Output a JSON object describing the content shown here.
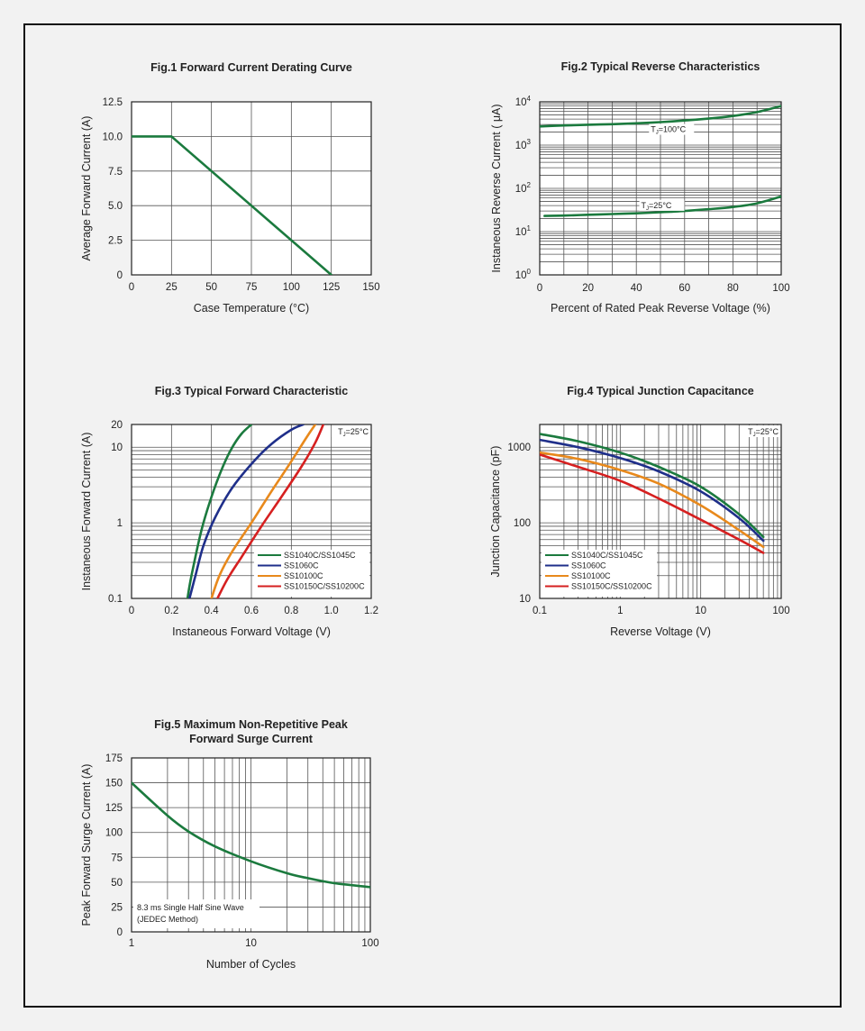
{
  "colors": {
    "background": "#f2f2f2",
    "plot_bg": "#ffffff",
    "grid": "#555555",
    "green": "#1b7a3e",
    "blue": "#1f2f8a",
    "orange": "#e8891c",
    "red": "#d62020"
  },
  "chart_data": [
    {
      "id": "fig1",
      "type": "line",
      "title": "Fig.1  Forward Current Derating Curve",
      "xlabel": "Case Temperature (°C)",
      "ylabel": "Average Forward Current (A)",
      "xscale": "linear",
      "yscale": "linear",
      "xlim": [
        0,
        150
      ],
      "ylim": [
        0,
        12.5
      ],
      "xticks": [
        "0",
        "25",
        "50",
        "75",
        "100",
        "125",
        "150"
      ],
      "yticks": [
        "0",
        "2.5",
        "5.0",
        "7.5",
        "10.0",
        "12.5"
      ],
      "grid": true,
      "series": [
        {
          "color": "green",
          "x": [
            0,
            25,
            125
          ],
          "y": [
            10,
            10,
            0
          ]
        }
      ]
    },
    {
      "id": "fig2",
      "type": "line",
      "title": "Fig.2  Typical Reverse Characteristics",
      "xlabel": "Percent of Rated Peak Reverse Voltage  (%)",
      "ylabel": "Instaneous   Reverse   Current ( μA)",
      "xscale": "linear",
      "yscale": "log",
      "xlim": [
        0,
        100
      ],
      "ylim": [
        1,
        10000
      ],
      "xticks": [
        "0",
        "20",
        "40",
        "60",
        "80",
        "100"
      ],
      "yticks_base": "10",
      "yticks_exp": [
        "0",
        "1",
        "2",
        "3",
        "4"
      ],
      "grid": true,
      "series": [
        {
          "name": "TJ=100°C",
          "color": "green",
          "x": [
            0,
            10,
            20,
            30,
            40,
            50,
            60,
            70,
            80,
            90,
            100
          ],
          "y": [
            2700,
            2850,
            2950,
            3050,
            3200,
            3400,
            3700,
            4100,
            4700,
            5800,
            8000
          ]
        },
        {
          "name": "TJ=25°C",
          "color": "green",
          "x": [
            2,
            10,
            20,
            30,
            40,
            50,
            60,
            70,
            80,
            90,
            100
          ],
          "y": [
            23,
            23.5,
            24.5,
            25.5,
            26.5,
            28,
            30,
            33,
            37,
            45,
            65
          ]
        }
      ],
      "annotations": [
        {
          "text_main": "T",
          "text_sub": "J",
          "text_rest": "=100°C",
          "x": 46,
          "y": 2000
        },
        {
          "text_main": "T",
          "text_sub": "J",
          "text_rest": "=25°C",
          "x": 42,
          "y": 35
        }
      ]
    },
    {
      "id": "fig3",
      "type": "line",
      "title": "Fig.3  Typical Forward Characteristic",
      "xlabel": "Instaneous Forward Voltage (V)",
      "ylabel": "Instaneous Forward Current  (A)",
      "xscale": "linear",
      "yscale": "log",
      "xlim": [
        0,
        1.2
      ],
      "ylim": [
        0.1,
        20
      ],
      "xticks": [
        "0",
        "0.2",
        "0.4",
        "0.6",
        "0.8",
        "1.0",
        "1.2"
      ],
      "yticks": [
        "0.1",
        "1",
        "10",
        "20"
      ],
      "ytick_values": [
        0.1,
        1,
        10,
        20
      ],
      "grid": true,
      "corner_note": {
        "main": "T",
        "sub": "J",
        "rest": "=25°C"
      },
      "legend_position": "bottom-right",
      "series": [
        {
          "name": "SS1040C/SS1045C",
          "color": "green",
          "x": [
            0.28,
            0.3,
            0.35,
            0.4,
            0.45,
            0.5,
            0.55,
            0.6
          ],
          "y": [
            0.1,
            0.2,
            0.8,
            2.2,
            5.0,
            9.5,
            15,
            20
          ]
        },
        {
          "name": "SS1060C",
          "color": "blue",
          "x": [
            0.29,
            0.32,
            0.36,
            0.42,
            0.5,
            0.6,
            0.7,
            0.8,
            0.86
          ],
          "y": [
            0.1,
            0.2,
            0.5,
            1.2,
            2.8,
            6.0,
            11,
            17,
            20
          ]
        },
        {
          "name": "SS10100C",
          "color": "orange",
          "x": [
            0.4,
            0.44,
            0.5,
            0.6,
            0.7,
            0.8,
            0.88,
            0.92
          ],
          "y": [
            0.1,
            0.2,
            0.4,
            1.0,
            2.6,
            6.5,
            14,
            20
          ]
        },
        {
          "name": "SS10150C/SS10200C",
          "color": "red",
          "x": [
            0.43,
            0.48,
            0.55,
            0.65,
            0.75,
            0.85,
            0.92,
            0.96
          ],
          "y": [
            0.1,
            0.18,
            0.35,
            0.9,
            2.2,
            5.5,
            11.5,
            20
          ]
        }
      ]
    },
    {
      "id": "fig4",
      "type": "line",
      "title": "Fig.4  Typical Junction Capacitance",
      "xlabel": "Reverse   Voltage (V)",
      "ylabel": "Junction  Capacitance (pF)",
      "xscale": "log",
      "yscale": "log",
      "xlim": [
        0.1,
        100
      ],
      "ylim": [
        10,
        2000
      ],
      "xticks": [
        "0.1",
        "1",
        "10",
        "100"
      ],
      "xtick_values": [
        0.1,
        1,
        10,
        100
      ],
      "yticks": [
        "10",
        "100",
        "1000"
      ],
      "ytick_values": [
        10,
        100,
        1000
      ],
      "grid": true,
      "corner_note": {
        "main": "T",
        "sub": "J",
        "rest": "=25°C"
      },
      "legend_position": "bottom-left",
      "series": [
        {
          "name": "SS1040C/SS1045C",
          "color": "green",
          "x": [
            0.1,
            0.3,
            1,
            3,
            10,
            30,
            60
          ],
          "y": [
            1500,
            1200,
            850,
            550,
            300,
            130,
            65
          ]
        },
        {
          "name": "SS1060C",
          "color": "blue",
          "x": [
            0.1,
            0.3,
            1,
            3,
            10,
            30,
            60
          ],
          "y": [
            1250,
            1000,
            720,
            480,
            260,
            115,
            58
          ]
        },
        {
          "name": "SS10100C",
          "color": "orange",
          "x": [
            0.1,
            0.3,
            1,
            3,
            10,
            30,
            60
          ],
          "y": [
            850,
            700,
            500,
            330,
            170,
            80,
            48
          ]
        },
        {
          "name": "SS10150C/SS10200C",
          "color": "red",
          "x": [
            0.1,
            0.3,
            1,
            3,
            10,
            30,
            60
          ],
          "y": [
            800,
            550,
            360,
            210,
            110,
            60,
            40
          ]
        }
      ]
    },
    {
      "id": "fig5",
      "type": "line",
      "title_lines": [
        "Fig.5  Maximum Non-Repetitive Peak",
        "Forward Surge Current"
      ],
      "xlabel": "Number of Cycles",
      "ylabel": "Peak Forward Surge Current (A)",
      "xscale": "log",
      "yscale": "linear",
      "xlim": [
        1,
        100
      ],
      "ylim": [
        0,
        175
      ],
      "xticks": [
        "1",
        "10",
        "100"
      ],
      "xtick_values": [
        1,
        10,
        100
      ],
      "yticks": [
        "0",
        "25",
        "50",
        "75",
        "100",
        "125",
        "150",
        "175"
      ],
      "grid": true,
      "note_lines": [
        "8.3 ms Single Half Sine Wave",
        "(JEDEC Method)"
      ],
      "series": [
        {
          "color": "green",
          "x": [
            1,
            2,
            3,
            5,
            10,
            20,
            30,
            50,
            100
          ],
          "y": [
            150,
            117,
            101,
            86,
            71,
            59,
            54,
            49,
            45
          ]
        }
      ]
    }
  ]
}
